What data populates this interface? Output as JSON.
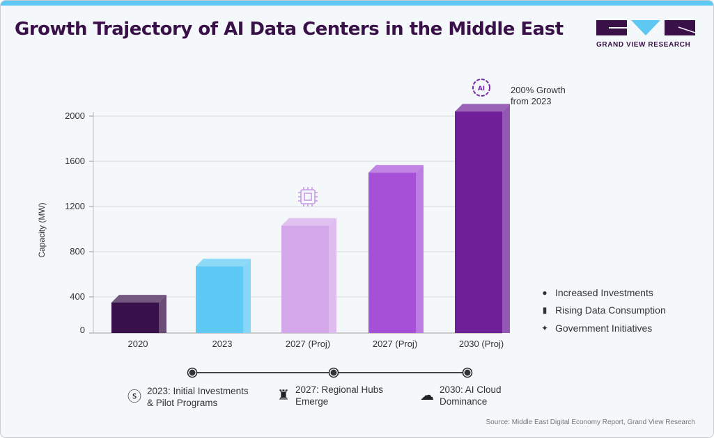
{
  "title": "Growth Trajectory of AI Data Centers in the Middle East",
  "logo": {
    "text": "GRAND VIEW RESEARCH"
  },
  "colors": {
    "title": "#3a1049",
    "accent": "#5ec8f2"
  },
  "chart_data": {
    "type": "bar",
    "title": "",
    "xlabel": "",
    "ylabel": "Capacity (MW)",
    "ylim": [
      0,
      2000
    ],
    "yticks": [
      0,
      400,
      800,
      1200,
      1600,
      2000
    ],
    "grid": true,
    "categories": [
      "2020",
      "2023",
      "2027 (Proj)",
      "2027 (Proj)",
      "2030 (Proj)"
    ],
    "values": [
      350,
      670,
      1030,
      1500,
      2040
    ],
    "colors": [
      "#38104a",
      "#5dc9f4",
      "#d4a6ea",
      "#a650d8",
      "#6f2099"
    ],
    "annotations": [
      {
        "category_index": 2,
        "icon": "cpu-chip-icon"
      },
      {
        "category_index": 4,
        "icon": "ai-brain-icon",
        "text": "200% Growth\nfrom 2023"
      }
    ]
  },
  "annotation": {
    "line1": "200% Growth",
    "line2": "from 2023"
  },
  "legend": [
    {
      "icon": "investment-dollar-icon",
      "label": "Increased Investments"
    },
    {
      "icon": "data-bars-icon",
      "label": "Rising Data Consumption"
    },
    {
      "icon": "handshake-icon",
      "label": "Government Initiatives"
    }
  ],
  "milestones": [
    {
      "icon": "dollar-circle-icon",
      "line1": "2023: Initial Investments",
      "line2": "& Pilot Programs"
    },
    {
      "icon": "antenna-tower-icon",
      "line1": "2027: Regional Hubs",
      "line2": "Emerge"
    },
    {
      "icon": "ai-cloud-icon",
      "line1": "2030: AI Cloud",
      "line2": "Dominance"
    }
  ],
  "source": "Source: Middle East Digital Economy Report, Grand View Research"
}
